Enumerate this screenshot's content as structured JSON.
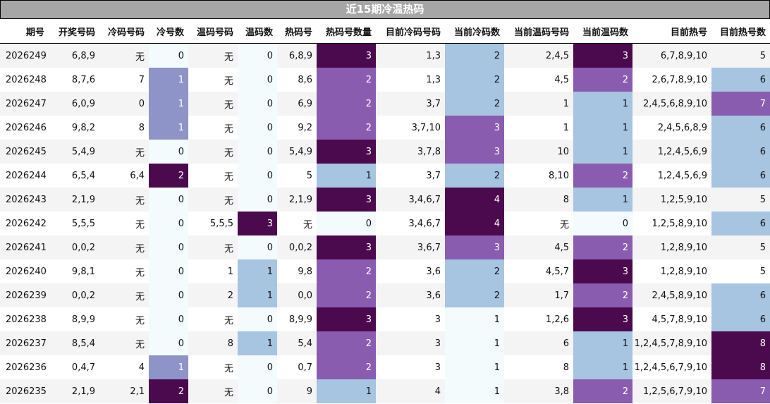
{
  "title": "近15期冷温热码",
  "headers": [
    "期号",
    "开奖号码",
    "冷码号码",
    "冷号数",
    "温码号码",
    "温码数",
    "热码号",
    "热码号数量",
    "目前冷码号码",
    "当前冷码数",
    "当前温码号码",
    "当前温码数",
    "目前热号",
    "目前热号数"
  ],
  "rows": [
    {
      "cells": [
        "2026249",
        "6,8,9",
        "无",
        "0",
        "无",
        "0",
        "6,8,9",
        "3",
        "1,3",
        "2",
        "2,4,5",
        "3",
        "6,7,8,9,10",
        "5"
      ],
      "styles": [
        "",
        "",
        "",
        "c0",
        "",
        "c0",
        "",
        "c3",
        "",
        "c1",
        "",
        "c3",
        "",
        ""
      ]
    },
    {
      "cells": [
        "2026248",
        "8,7,6",
        "7",
        "1",
        "无",
        "0",
        "8,6",
        "2",
        "1,3",
        "2",
        "4,5",
        "2",
        "2,6,7,8,9,10",
        "6"
      ],
      "styles": [
        "",
        "",
        "",
        "c1b",
        "",
        "c0",
        "",
        "c2",
        "",
        "c1",
        "",
        "c2",
        "",
        "c1"
      ]
    },
    {
      "cells": [
        "2026247",
        "6,0,9",
        "0",
        "1",
        "无",
        "0",
        "6,9",
        "2",
        "3,7",
        "2",
        "1",
        "1",
        "2,4,5,6,8,9,10",
        "7"
      ],
      "styles": [
        "",
        "",
        "",
        "c1b",
        "",
        "c0",
        "",
        "c2",
        "",
        "c1",
        "",
        "c1",
        "",
        "c2"
      ]
    },
    {
      "cells": [
        "2026246",
        "9,8,2",
        "8",
        "1",
        "无",
        "0",
        "9,2",
        "2",
        "3,7,10",
        "3",
        "1",
        "1",
        "2,4,5,6,8,9",
        "6"
      ],
      "styles": [
        "",
        "",
        "",
        "c1b",
        "",
        "c0",
        "",
        "c2",
        "",
        "c2",
        "",
        "c1",
        "",
        "c1"
      ]
    },
    {
      "cells": [
        "2026245",
        "5,4,9",
        "无",
        "0",
        "无",
        "0",
        "5,4,9",
        "3",
        "3,7,8",
        "3",
        "10",
        "1",
        "1,2,4,5,6,9",
        "6"
      ],
      "styles": [
        "",
        "",
        "",
        "c0",
        "",
        "c0",
        "",
        "c3",
        "",
        "c2",
        "",
        "c1",
        "",
        "c1"
      ]
    },
    {
      "cells": [
        "2026244",
        "6,5,4",
        "6,4",
        "2",
        "无",
        "0",
        "5",
        "1",
        "3,7",
        "2",
        "8,10",
        "2",
        "1,2,4,5,6,9",
        "6"
      ],
      "styles": [
        "",
        "",
        "",
        "c3",
        "",
        "c0",
        "",
        "c1",
        "",
        "c1",
        "",
        "c2",
        "",
        "c1"
      ]
    },
    {
      "cells": [
        "2026243",
        "2,1,9",
        "无",
        "0",
        "无",
        "0",
        "2,1,9",
        "3",
        "3,4,6,7",
        "4",
        "8",
        "1",
        "1,2,5,9,10",
        "5"
      ],
      "styles": [
        "",
        "",
        "",
        "c0",
        "",
        "c0",
        "",
        "c3",
        "",
        "c3",
        "",
        "c1",
        "",
        ""
      ]
    },
    {
      "cells": [
        "2026242",
        "5,5,5",
        "无",
        "0",
        "5,5,5",
        "3",
        "无",
        "0",
        "3,4,6,7",
        "4",
        "无",
        "0",
        "1,2,5,8,9,10",
        "6"
      ],
      "styles": [
        "",
        "",
        "",
        "c0",
        "",
        "c3",
        "",
        "c0",
        "",
        "c3",
        "",
        "c0",
        "",
        "c1"
      ]
    },
    {
      "cells": [
        "2026241",
        "0,0,2",
        "无",
        "0",
        "无",
        "0",
        "0,0,2",
        "3",
        "3,6,7",
        "3",
        "4,5",
        "2",
        "1,2,8,9,10",
        "5"
      ],
      "styles": [
        "",
        "",
        "",
        "c0",
        "",
        "c0",
        "",
        "c3",
        "",
        "c2",
        "",
        "c2",
        "",
        ""
      ]
    },
    {
      "cells": [
        "2026240",
        "9,8,1",
        "无",
        "0",
        "1",
        "1",
        "9,8",
        "2",
        "3,6",
        "2",
        "4,5,7",
        "3",
        "1,2,8,9,10",
        "5"
      ],
      "styles": [
        "",
        "",
        "",
        "c0",
        "",
        "c1",
        "",
        "c2",
        "",
        "c1",
        "",
        "c3",
        "",
        ""
      ]
    },
    {
      "cells": [
        "2026239",
        "0,0,2",
        "无",
        "0",
        "2",
        "1",
        "0,0",
        "2",
        "3,6",
        "2",
        "1,7",
        "2",
        "2,4,5,8,9,10",
        "6"
      ],
      "styles": [
        "",
        "",
        "",
        "c0",
        "",
        "c1",
        "",
        "c2",
        "",
        "c1",
        "",
        "c2",
        "",
        "c1"
      ]
    },
    {
      "cells": [
        "2026238",
        "8,9,9",
        "无",
        "0",
        "无",
        "0",
        "8,9,9",
        "3",
        "3",
        "1",
        "1,2,6",
        "3",
        "4,5,7,8,9,10",
        "6"
      ],
      "styles": [
        "",
        "",
        "",
        "c0",
        "",
        "c0",
        "",
        "c3",
        "",
        "c0",
        "",
        "c3",
        "",
        "c1"
      ]
    },
    {
      "cells": [
        "2026237",
        "8,5,4",
        "无",
        "0",
        "8",
        "1",
        "5,4",
        "2",
        "3",
        "1",
        "6",
        "1",
        "1,2,4,5,7,8,9,10",
        "8"
      ],
      "styles": [
        "",
        "",
        "",
        "c0",
        "",
        "c1",
        "",
        "c2",
        "",
        "c0",
        "",
        "c1",
        "",
        "c3"
      ]
    },
    {
      "cells": [
        "2026236",
        "0,4,7",
        "4",
        "1",
        "无",
        "0",
        "0,7",
        "2",
        "3",
        "1",
        "8",
        "1",
        "1,2,4,5,6,7,9,10",
        "8"
      ],
      "styles": [
        "",
        "",
        "",
        "c1b",
        "",
        "c0",
        "",
        "c2",
        "",
        "c0",
        "",
        "c1",
        "",
        "c3"
      ]
    },
    {
      "cells": [
        "2026235",
        "2,1,9",
        "2,1",
        "2",
        "无",
        "0",
        "9",
        "1",
        "4",
        "1",
        "3,8",
        "2",
        "1,2,5,6,7,9,10",
        "7"
      ],
      "styles": [
        "",
        "",
        "",
        "c3",
        "",
        "c0",
        "",
        "c1",
        "",
        "c0",
        "",
        "c2",
        "",
        "c2"
      ]
    }
  ]
}
